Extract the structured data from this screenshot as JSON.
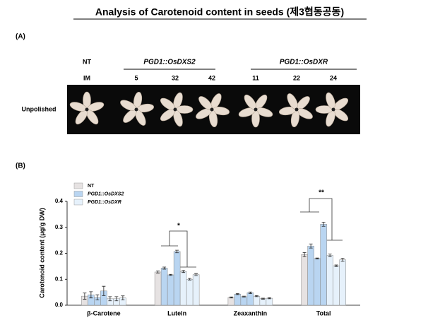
{
  "title": "Analysis of Carotenoid content in seeds (제3협동공동)",
  "panel_a": {
    "label": "(A)",
    "groups": [
      "NT",
      "PGD1::OsDXS2",
      "PGD1::OsDXR"
    ],
    "lines": [
      "IM",
      "5",
      "32",
      "42",
      "11",
      "22",
      "24"
    ],
    "row_label": "Unpolished"
  },
  "panel_b": {
    "label": "(B)"
  },
  "chart_data": {
    "type": "grouped-bar-error",
    "y_label": "Carotenoid content  (μg/g DW)",
    "categories": [
      "β-Carotene",
      "Lutein",
      "Zeaxanthin",
      "Total"
    ],
    "series": [
      {
        "name": "NT",
        "color": "#e6e2e2",
        "values": [
          [
            0.035
          ],
          [
            0.128
          ],
          [
            0.03
          ],
          [
            0.195
          ]
        ],
        "errors": [
          [
            0.012
          ],
          [
            0.004
          ],
          [
            0.002
          ],
          [
            0.008
          ]
        ]
      },
      {
        "name": "PGD1::OsDXS2",
        "color": "#b9d5f1",
        "values": [
          [
            0.04,
            0.03,
            0.055
          ],
          [
            0.143,
            0.117,
            0.207
          ],
          [
            0.043,
            0.033,
            0.048
          ],
          [
            0.228,
            0.18,
            0.312
          ]
        ],
        "errors": [
          [
            0.012,
            0.01,
            0.018
          ],
          [
            0.004,
            0.002,
            0.005
          ],
          [
            0.002,
            0.002,
            0.003
          ],
          [
            0.008,
            0.002,
            0.008
          ]
        ]
      },
      {
        "name": "PGD1::OsDXR",
        "color": "#e6f1fb",
        "values": [
          [
            0.025,
            0.025,
            0.028
          ],
          [
            0.13,
            0.1,
            0.118
          ],
          [
            0.035,
            0.025,
            0.027
          ],
          [
            0.192,
            0.152,
            0.175
          ]
        ],
        "errors": [
          [
            0.008,
            0.008,
            0.008
          ],
          [
            0.004,
            0.003,
            0.004
          ],
          [
            0.002,
            0.002,
            0.002
          ],
          [
            0.005,
            0.003,
            0.006
          ]
        ]
      }
    ],
    "ylim": [
      0,
      0.4
    ],
    "yticks": [
      {
        "value": 0,
        "label": "0.0"
      },
      0.1,
      0.2,
      0.3,
      0.4
    ],
    "annotations": [
      "*",
      "**"
    ]
  }
}
